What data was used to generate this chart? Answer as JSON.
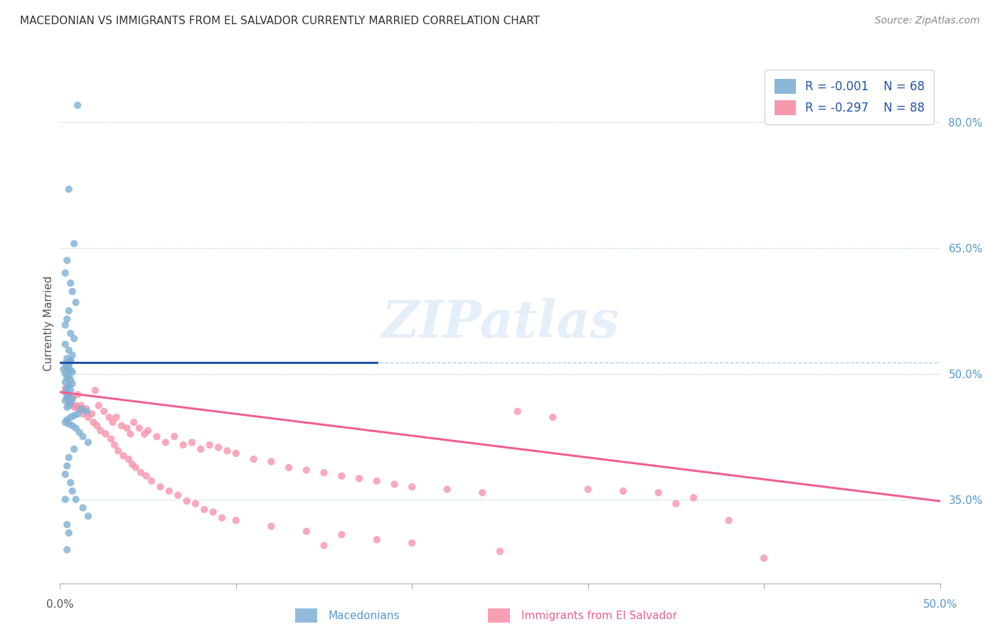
{
  "title": "MACEDONIAN VS IMMIGRANTS FROM EL SALVADOR CURRENTLY MARRIED CORRELATION CHART",
  "source": "Source: ZipAtlas.com",
  "ylabel": "Currently Married",
  "right_yticks": [
    "80.0%",
    "65.0%",
    "50.0%",
    "35.0%"
  ],
  "right_ytick_vals": [
    0.8,
    0.65,
    0.5,
    0.35
  ],
  "xlim": [
    0.0,
    0.5
  ],
  "ylim": [
    0.25,
    0.87
  ],
  "legend_r1": "-0.001",
  "legend_n1": "68",
  "legend_r2": "-0.297",
  "legend_n2": "88",
  "blue_color": "#7EB0D5",
  "pink_color": "#F78DA7",
  "blue_line_color": "#2255AA",
  "pink_line_color": "#F06090",
  "dashed_line_color": "#AACCEE",
  "watermark": "ZIPatlas",
  "blue_scatter_x": [
    0.01,
    0.005,
    0.008,
    0.004,
    0.003,
    0.006,
    0.007,
    0.009,
    0.005,
    0.004,
    0.003,
    0.006,
    0.008,
    0.003,
    0.005,
    0.007,
    0.004,
    0.006,
    0.003,
    0.005,
    0.004,
    0.006,
    0.007,
    0.003,
    0.005,
    0.004,
    0.006,
    0.003,
    0.007,
    0.005,
    0.004,
    0.006,
    0.003,
    0.005,
    0.004,
    0.007,
    0.003,
    0.006,
    0.005,
    0.004,
    0.012,
    0.015,
    0.01,
    0.008,
    0.006,
    0.004,
    0.003,
    0.005,
    0.007,
    0.009,
    0.011,
    0.013,
    0.016,
    0.008,
    0.005,
    0.004,
    0.003,
    0.006,
    0.007,
    0.009,
    0.013,
    0.016,
    0.004,
    0.005,
    0.006,
    0.002,
    0.003,
    0.004
  ],
  "blue_scatter_y": [
    0.82,
    0.72,
    0.655,
    0.635,
    0.62,
    0.608,
    0.598,
    0.585,
    0.575,
    0.565,
    0.558,
    0.548,
    0.542,
    0.535,
    0.528,
    0.522,
    0.518,
    0.515,
    0.512,
    0.51,
    0.507,
    0.504,
    0.502,
    0.5,
    0.498,
    0.495,
    0.493,
    0.49,
    0.488,
    0.485,
    0.483,
    0.48,
    0.478,
    0.475,
    0.472,
    0.47,
    0.468,
    0.465,
    0.462,
    0.46,
    0.458,
    0.455,
    0.452,
    0.45,
    0.448,
    0.445,
    0.442,
    0.44,
    0.438,
    0.435,
    0.43,
    0.425,
    0.418,
    0.41,
    0.4,
    0.39,
    0.38,
    0.37,
    0.36,
    0.35,
    0.34,
    0.33,
    0.32,
    0.31,
    0.515,
    0.505,
    0.35,
    0.29
  ],
  "pink_scatter_x": [
    0.004,
    0.006,
    0.008,
    0.01,
    0.012,
    0.015,
    0.018,
    0.02,
    0.022,
    0.025,
    0.028,
    0.03,
    0.032,
    0.035,
    0.038,
    0.04,
    0.042,
    0.045,
    0.048,
    0.05,
    0.055,
    0.06,
    0.065,
    0.07,
    0.075,
    0.08,
    0.085,
    0.09,
    0.095,
    0.1,
    0.11,
    0.12,
    0.13,
    0.14,
    0.15,
    0.16,
    0.17,
    0.18,
    0.19,
    0.2,
    0.22,
    0.24,
    0.26,
    0.28,
    0.3,
    0.32,
    0.34,
    0.36,
    0.003,
    0.005,
    0.007,
    0.009,
    0.011,
    0.013,
    0.016,
    0.019,
    0.021,
    0.023,
    0.026,
    0.029,
    0.031,
    0.033,
    0.036,
    0.039,
    0.041,
    0.043,
    0.046,
    0.049,
    0.052,
    0.057,
    0.062,
    0.067,
    0.072,
    0.077,
    0.082,
    0.087,
    0.092,
    0.1,
    0.12,
    0.14,
    0.16,
    0.18,
    0.2,
    0.25,
    0.38,
    0.15,
    0.35,
    0.4
  ],
  "pink_scatter_y": [
    0.47,
    0.465,
    0.46,
    0.475,
    0.462,
    0.458,
    0.452,
    0.48,
    0.462,
    0.455,
    0.448,
    0.442,
    0.448,
    0.438,
    0.435,
    0.428,
    0.442,
    0.435,
    0.428,
    0.432,
    0.425,
    0.418,
    0.425,
    0.415,
    0.418,
    0.41,
    0.415,
    0.412,
    0.408,
    0.405,
    0.398,
    0.395,
    0.388,
    0.385,
    0.382,
    0.378,
    0.375,
    0.372,
    0.368,
    0.365,
    0.362,
    0.358,
    0.455,
    0.448,
    0.362,
    0.36,
    0.358,
    0.352,
    0.482,
    0.475,
    0.47,
    0.462,
    0.458,
    0.452,
    0.448,
    0.442,
    0.438,
    0.432,
    0.428,
    0.422,
    0.415,
    0.408,
    0.402,
    0.398,
    0.392,
    0.388,
    0.382,
    0.378,
    0.372,
    0.365,
    0.36,
    0.355,
    0.348,
    0.345,
    0.338,
    0.335,
    0.328,
    0.325,
    0.318,
    0.312,
    0.308,
    0.302,
    0.298,
    0.288,
    0.325,
    0.295,
    0.345,
    0.28
  ],
  "blue_trend_x": [
    0.0,
    0.18
  ],
  "blue_trend_y": [
    0.513,
    0.513
  ],
  "pink_trend_x": [
    0.0,
    0.5
  ],
  "pink_trend_y": [
    0.478,
    0.348
  ],
  "dashed_line_y": 0.513
}
